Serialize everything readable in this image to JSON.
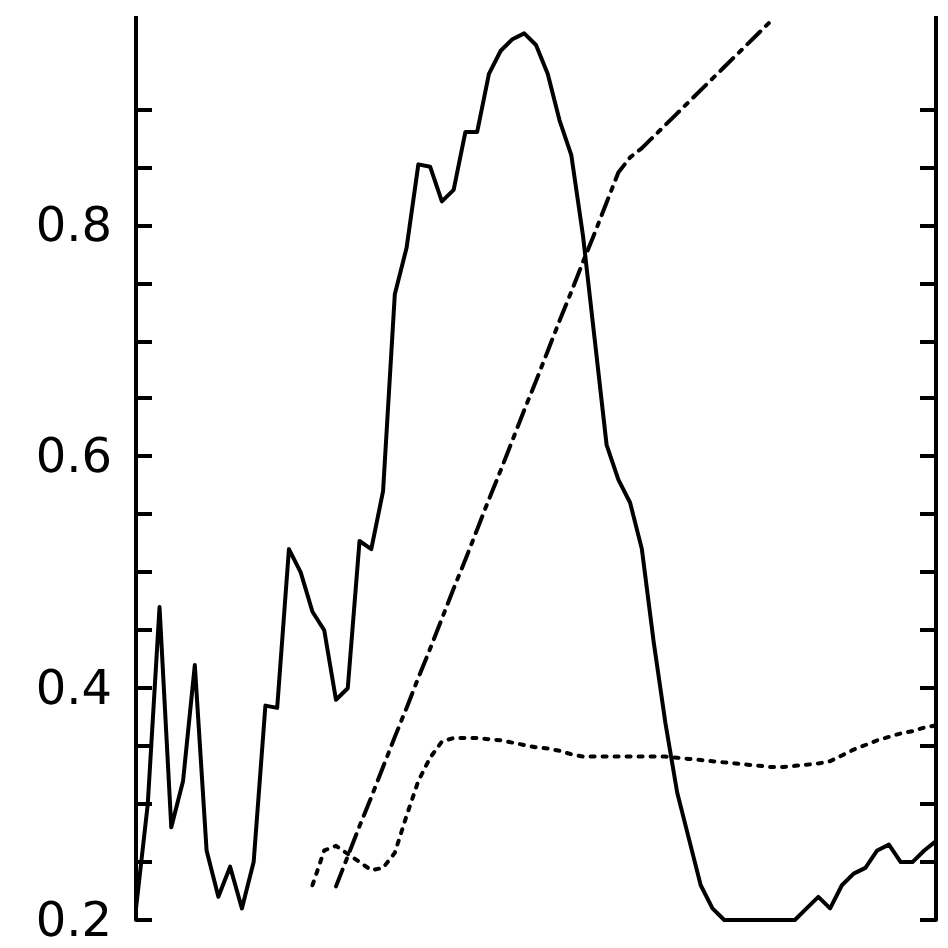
{
  "chart_data": {
    "type": "line",
    "tick_labels": "y",
    "grid": false,
    "categories": [
      null,
      null,
      null,
      null,
      null,
      null,
      null,
      null,
      null,
      null,
      null,
      null,
      null,
      null,
      null,
      null,
      null,
      null,
      null,
      null,
      null,
      null,
      null,
      null,
      null,
      null,
      null,
      null,
      null,
      null,
      null,
      null,
      null,
      null,
      null,
      null,
      null,
      null,
      null,
      null,
      null,
      null,
      null,
      null,
      null,
      null,
      null,
      null,
      null,
      null,
      null,
      null,
      null,
      null,
      null,
      null,
      null,
      null,
      null,
      null,
      null,
      null,
      null,
      null,
      null,
      null,
      null,
      null,
      null
    ],
    "ylim": [
      0.2,
      0.98
    ],
    "yticks": [
      0.2,
      {
        "value": 0.25,
        "label": null
      },
      {
        "value": 0.3,
        "label": null
      },
      {
        "value": 0.35,
        "label": null
      },
      0.4,
      {
        "value": 0.45,
        "label": null
      },
      {
        "value": 0.5,
        "label": null
      },
      {
        "value": 0.55,
        "label": null
      },
      0.6,
      {
        "value": 0.65,
        "label": null
      },
      {
        "value": 0.7,
        "label": null
      },
      {
        "value": 0.75,
        "label": null
      },
      0.8,
      {
        "value": 0.85,
        "label": null
      },
      {
        "value": 0.9,
        "label": null
      }
    ],
    "series": [
      {
        "color": "#000000",
        "line_style": "solid",
        "values": [
          0.21,
          0.3,
          0.47,
          0.28,
          0.32,
          0.42,
          0.26,
          0.22,
          0.246,
          0.21,
          0.25,
          0.385,
          0.383,
          0.52,
          0.5,
          0.466,
          0.45,
          0.39,
          0.4,
          0.527,
          0.52,
          0.57,
          0.74,
          0.78,
          0.852,
          0.85,
          0.82,
          0.83,
          0.88,
          0.88,
          0.93,
          0.95,
          0.96,
          0.965,
          0.955,
          0.93,
          0.89,
          0.86,
          0.79,
          0.7,
          0.61,
          0.58,
          0.56,
          0.52,
          0.44,
          0.37,
          0.31,
          0.27,
          0.23,
          0.21,
          0.2,
          0.2,
          0.2,
          0.2,
          0.2,
          0.2,
          0.2,
          0.21,
          0.22,
          0.21,
          0.23,
          0.24,
          0.245,
          0.26,
          0.265,
          0.25,
          0.25,
          0.26,
          0.268
        ]
      },
      {
        "color": "#000000",
        "line_style": "dashed",
        "values": [
          null,
          null,
          null,
          null,
          null,
          null,
          null,
          null,
          null,
          null,
          null,
          null,
          null,
          null,
          null,
          null,
          null,
          0.229,
          0.255,
          0.281,
          0.306,
          0.332,
          0.358,
          0.383,
          0.409,
          0.434,
          0.46,
          0.486,
          0.511,
          0.537,
          0.563,
          0.588,
          0.614,
          0.64,
          0.665,
          0.691,
          0.717,
          0.742,
          0.768,
          0.793,
          0.819,
          0.845,
          0.858,
          0.866,
          0.876,
          0.886,
          0.896,
          0.906,
          0.916,
          0.926,
          0.936,
          0.946,
          0.956,
          0.966,
          0.976,
          null,
          null,
          null,
          null,
          null,
          null,
          null,
          null,
          null,
          null,
          null,
          null,
          null,
          null
        ]
      },
      {
        "color": "#000000",
        "line_style": "dotted",
        "values": [
          null,
          null,
          null,
          null,
          null,
          null,
          null,
          null,
          null,
          null,
          null,
          null,
          null,
          null,
          null,
          0.23,
          0.26,
          0.264,
          0.257,
          0.25,
          0.243,
          0.245,
          0.258,
          0.29,
          0.32,
          0.34,
          0.354,
          0.357,
          0.357,
          0.357,
          0.356,
          0.355,
          0.353,
          0.351,
          0.349,
          0.348,
          0.346,
          0.343,
          0.341,
          0.341,
          0.341,
          0.341,
          0.341,
          0.341,
          0.341,
          0.341,
          0.34,
          0.339,
          0.338,
          0.337,
          0.336,
          0.335,
          0.334,
          0.333,
          0.332,
          0.332,
          0.333,
          0.334,
          0.335,
          0.337,
          0.342,
          0.347,
          0.351,
          0.355,
          0.358,
          0.361,
          0.363,
          0.366,
          0.368
        ]
      }
    ]
  }
}
